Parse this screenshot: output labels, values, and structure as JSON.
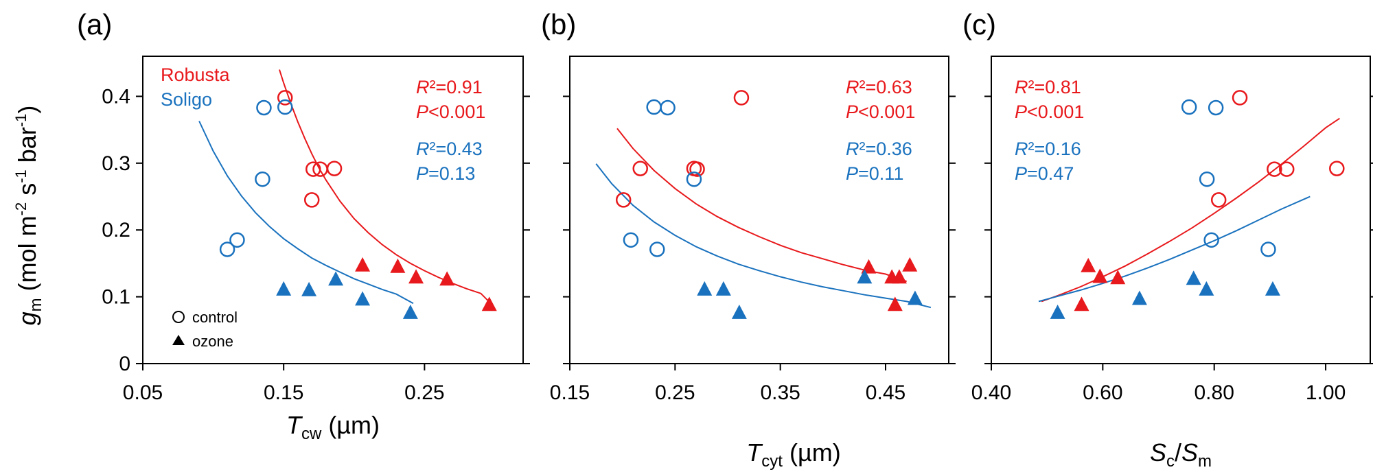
{
  "colors": {
    "robusta": "#e8191c",
    "soligo": "#1a72be",
    "axis": "#000000"
  },
  "legend": {
    "series": [
      {
        "name": "Robusta",
        "color": "#e8191c"
      },
      {
        "name": "Soligo",
        "color": "#1a72be"
      }
    ],
    "shapes": [
      {
        "label": "control",
        "marker": "open-circle"
      },
      {
        "label": "ozone",
        "marker": "filled-triangle"
      }
    ]
  },
  "y_axis": {
    "label_base": "g",
    "label_sub": "m",
    "label_unit": " (mol m",
    "sup1": "-2",
    "mid": " s",
    "sup2": "-1",
    "end": " bar",
    "sup3": "-1",
    "close": ")",
    "ticks": [
      "0",
      "0.1",
      "0.2",
      "0.3",
      "0.4"
    ]
  },
  "chart_data": [
    {
      "type": "scatter",
      "panel": "(a)",
      "xlabel_base": "T",
      "xlabel_sub": "cw",
      "xlabel_unit": " (µm)",
      "xticks": [
        "0.05",
        "0.15",
        "0.25"
      ],
      "xlim": [
        0.05,
        0.32
      ],
      "ylim": [
        0,
        0.46
      ],
      "stats": [
        {
          "r2": "=0.91",
          "p": "<0.001",
          "color": "#e8191c"
        },
        {
          "r2": "=0.43",
          "p": "=0.13",
          "color": "#1a72be"
        }
      ],
      "series": [
        {
          "name": "Robusta",
          "group": "control",
          "marker": "circle",
          "color": "#e8191c",
          "x": [
            0.151,
            0.171,
            0.176,
            0.186,
            0.17
          ],
          "y": [
            0.398,
            0.291,
            0.291,
            0.292,
            0.245
          ]
        },
        {
          "name": "Robusta",
          "group": "ozone",
          "marker": "triangle",
          "color": "#e8191c",
          "x": [
            0.206,
            0.231,
            0.244,
            0.266,
            0.296
          ],
          "y": [
            0.148,
            0.146,
            0.13,
            0.127,
            0.089
          ]
        },
        {
          "name": "Soligo",
          "group": "control",
          "marker": "circle",
          "color": "#1a72be",
          "x": [
            0.136,
            0.151,
            0.135,
            0.117,
            0.11
          ],
          "y": [
            0.383,
            0.384,
            0.276,
            0.185,
            0.171
          ]
        },
        {
          "name": "Soligo",
          "group": "ozone",
          "marker": "triangle",
          "color": "#1a72be",
          "x": [
            0.15,
            0.168,
            0.187,
            0.206,
            0.24
          ],
          "y": [
            0.112,
            0.111,
            0.127,
            0.097,
            0.077
          ]
        }
      ],
      "fits": [
        {
          "color": "#e8191c",
          "x": [
            0.147,
            0.15,
            0.155,
            0.16,
            0.165,
            0.17,
            0.175,
            0.18,
            0.19,
            0.2,
            0.21,
            0.22,
            0.23,
            0.24,
            0.25,
            0.26,
            0.27,
            0.28,
            0.29,
            0.298
          ],
          "y": [
            0.44,
            0.42,
            0.39,
            0.362,
            0.337,
            0.314,
            0.293,
            0.275,
            0.243,
            0.217,
            0.196,
            0.178,
            0.163,
            0.15,
            0.139,
            0.129,
            0.12,
            0.112,
            0.105,
            0.088
          ]
        },
        {
          "color": "#1a72be",
          "x": [
            0.09,
            0.1,
            0.11,
            0.12,
            0.13,
            0.14,
            0.15,
            0.16,
            0.17,
            0.18,
            0.19,
            0.2,
            0.21,
            0.22,
            0.23,
            0.242
          ],
          "y": [
            0.363,
            0.318,
            0.281,
            0.251,
            0.226,
            0.205,
            0.187,
            0.172,
            0.158,
            0.147,
            0.137,
            0.127,
            0.119,
            0.111,
            0.104,
            0.09
          ]
        }
      ]
    },
    {
      "type": "scatter",
      "panel": "(b)",
      "xlabel_base": "T",
      "xlabel_sub": "cyt",
      "xlabel_unit": " (µm)",
      "xticks": [
        "0.15",
        "0.25",
        "0.35",
        "0.45"
      ],
      "xlim": [
        0.15,
        0.51
      ],
      "ylim": [
        0,
        0.46
      ],
      "stats": [
        {
          "r2": "=0.63",
          "p": "<0.001",
          "color": "#e8191c"
        },
        {
          "r2": "=0.36",
          "p": "=0.11",
          "color": "#1a72be"
        }
      ],
      "series": [
        {
          "name": "Robusta",
          "group": "control",
          "marker": "circle",
          "color": "#e8191c",
          "x": [
            0.313,
            0.217,
            0.268,
            0.271,
            0.201
          ],
          "y": [
            0.398,
            0.292,
            0.292,
            0.291,
            0.245
          ]
        },
        {
          "name": "Robusta",
          "group": "ozone",
          "marker": "triangle",
          "color": "#e8191c",
          "x": [
            0.434,
            0.456,
            0.463,
            0.473,
            0.459
          ],
          "y": [
            0.145,
            0.13,
            0.13,
            0.148,
            0.089
          ]
        },
        {
          "name": "Soligo",
          "group": "control",
          "marker": "circle",
          "color": "#1a72be",
          "x": [
            0.23,
            0.243,
            0.268,
            0.208,
            0.233
          ],
          "y": [
            0.384,
            0.383,
            0.276,
            0.185,
            0.171
          ]
        },
        {
          "name": "Soligo",
          "group": "ozone",
          "marker": "triangle",
          "color": "#1a72be",
          "x": [
            0.278,
            0.296,
            0.311,
            0.43,
            0.478
          ],
          "y": [
            0.112,
            0.112,
            0.077,
            0.13,
            0.098
          ]
        }
      ],
      "fits": [
        {
          "color": "#e8191c",
          "x": [
            0.195,
            0.21,
            0.23,
            0.25,
            0.27,
            0.29,
            0.31,
            0.33,
            0.35,
            0.37,
            0.39,
            0.41,
            0.43,
            0.45,
            0.47
          ],
          "y": [
            0.352,
            0.322,
            0.289,
            0.262,
            0.239,
            0.22,
            0.204,
            0.19,
            0.177,
            0.166,
            0.157,
            0.148,
            0.14,
            0.134,
            0.123
          ]
        },
        {
          "color": "#1a72be",
          "x": [
            0.175,
            0.19,
            0.21,
            0.23,
            0.25,
            0.27,
            0.29,
            0.31,
            0.33,
            0.35,
            0.37,
            0.39,
            0.41,
            0.43,
            0.45,
            0.47,
            0.493
          ],
          "y": [
            0.299,
            0.269,
            0.237,
            0.212,
            0.192,
            0.175,
            0.161,
            0.149,
            0.139,
            0.13,
            0.122,
            0.115,
            0.109,
            0.103,
            0.098,
            0.093,
            0.084
          ]
        }
      ]
    },
    {
      "type": "scatter",
      "panel": "(c)",
      "xlabel_base": "S",
      "xlabel_sub": "c",
      "xlabel_mid": "/",
      "xlabel_base2": "S",
      "xlabel_sub2": "m",
      "xlabel_unit": "",
      "xticks": [
        "0.40",
        "0.60",
        "0.80",
        "1.00"
      ],
      "xlim": [
        0.4,
        1.08
      ],
      "ylim": [
        0,
        0.46
      ],
      "stats": [
        {
          "r2": "=0.81",
          "p": "<0.001",
          "color": "#e8191c"
        },
        {
          "r2": "=0.16",
          "p": "=0.47",
          "color": "#1a72be"
        }
      ],
      "series": [
        {
          "name": "Robusta",
          "group": "control",
          "marker": "circle",
          "color": "#e8191c",
          "x": [
            0.846,
            0.908,
            0.93,
            1.02,
            0.808
          ],
          "y": [
            0.398,
            0.291,
            0.291,
            0.292,
            0.245
          ]
        },
        {
          "name": "Robusta",
          "group": "ozone",
          "marker": "triangle",
          "color": "#e8191c",
          "x": [
            0.574,
            0.595,
            0.627,
            0.562
          ],
          "y": [
            0.147,
            0.131,
            0.129,
            0.089
          ]
        },
        {
          "name": "Soligo",
          "group": "control",
          "marker": "circle",
          "color": "#1a72be",
          "x": [
            0.755,
            0.803,
            0.787,
            0.795,
            0.897
          ],
          "y": [
            0.384,
            0.383,
            0.276,
            0.185,
            0.171
          ]
        },
        {
          "name": "Soligo",
          "group": "ozone",
          "marker": "triangle",
          "color": "#1a72be",
          "x": [
            0.763,
            0.786,
            0.905,
            0.666,
            0.519
          ],
          "y": [
            0.128,
            0.112,
            0.112,
            0.098,
            0.077
          ]
        }
      ],
      "fits": [
        {
          "color": "#e8191c",
          "x": [
            0.49,
            0.52,
            0.56,
            0.6,
            0.64,
            0.68,
            0.72,
            0.76,
            0.8,
            0.84,
            0.88,
            0.92,
            0.96,
            1.0,
            1.025
          ],
          "y": [
            0.093,
            0.102,
            0.115,
            0.13,
            0.146,
            0.164,
            0.183,
            0.203,
            0.225,
            0.248,
            0.272,
            0.298,
            0.325,
            0.353,
            0.367
          ]
        },
        {
          "color": "#1a72be",
          "x": [
            0.485,
            0.52,
            0.56,
            0.6,
            0.64,
            0.68,
            0.72,
            0.76,
            0.8,
            0.84,
            0.88,
            0.92,
            0.972
          ],
          "y": [
            0.093,
            0.101,
            0.11,
            0.12,
            0.131,
            0.143,
            0.156,
            0.17,
            0.184,
            0.199,
            0.215,
            0.231,
            0.25
          ]
        }
      ]
    }
  ]
}
